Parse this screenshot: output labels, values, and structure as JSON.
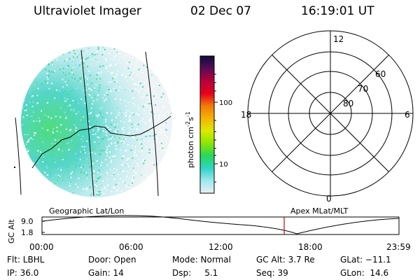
{
  "header": {
    "instrument": "Ultraviolet Imager",
    "date": "02 Dec 07",
    "time": "16:19:01 UT"
  },
  "colorbar": {
    "label_main": "photon cm",
    "label_exp1": "-2",
    "label_s": "s",
    "label_exp2": "-1",
    "tick_100": "100",
    "tick_10": "10",
    "stops": [
      "#0d0d3d",
      "#5a0b55",
      "#b8003a",
      "#e6001c",
      "#f47a08",
      "#f4b400",
      "#dcea00",
      "#8ae600",
      "#28d85a",
      "#2fd4c6",
      "#9ee8ee",
      "#e8f0f4"
    ]
  },
  "polar_plot": {
    "mlt_labels": {
      "top": "12",
      "left": "18",
      "right": "6",
      "bottom": "0"
    },
    "lat_labels": [
      "60",
      "70",
      "80"
    ]
  },
  "timeline": {
    "left_title": "Geographic Lat/Lon",
    "right_title": "Apex MLat/MLT",
    "axis_label": "GC Alt",
    "y_max": "9.0",
    "y_min": "1.8",
    "x_ticks": [
      "00:00",
      "06:00",
      "12:00",
      "18:00",
      "23:59"
    ],
    "marker_color": "#d00000"
  },
  "footer": {
    "filter": "Flt: LBHL",
    "door": "Door: Open",
    "mode": "Mode: Normal",
    "gc_alt": "GC Alt: 3.7 Re",
    "glat": "GLat: −11.1",
    "ip": "IP: 36.0",
    "gain": "Gain: 14",
    "dsp": "Dsp:     5.1",
    "seq": "Seq: 39",
    "glon": "GLon:  14.6"
  }
}
